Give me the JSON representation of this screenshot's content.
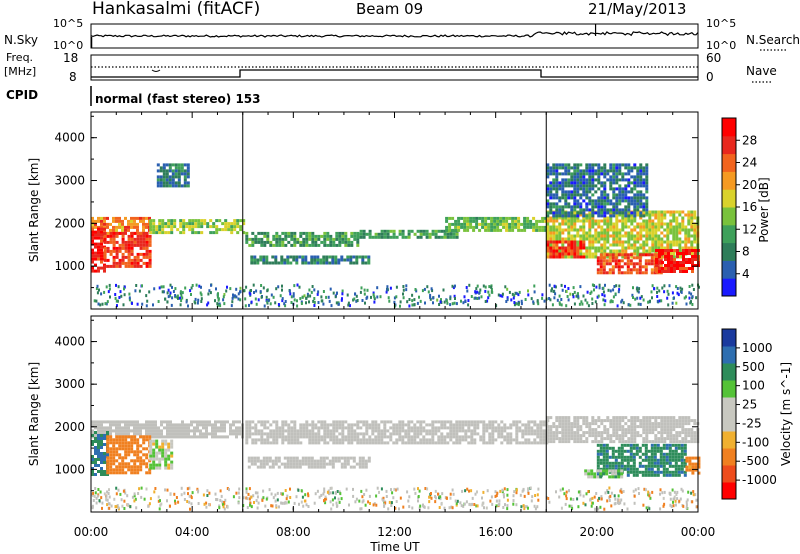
{
  "header": {
    "station": "Hankasalmi (fitACF)",
    "beam": "Beam 09",
    "date": "21/May/2013"
  },
  "noise_panel": {
    "left_label": "N.Sky",
    "right_label": "N.Search",
    "left_ticks": [
      "10^5",
      "10^0"
    ],
    "right_ticks": [
      "10^5",
      "10^0"
    ]
  },
  "freq_panel": {
    "left_label_top": "Freq.",
    "left_label_bottom": "[MHz]",
    "right_label": "Nave",
    "left_ticks": [
      "18",
      "8"
    ],
    "right_ticks": [
      "60",
      "0"
    ]
  },
  "cpid": {
    "label": "CPID",
    "text": "normal (fast stereo) 153"
  },
  "colors": {
    "power_scale": [
      "#1a1aff",
      "#2a5fb0",
      "#2e7d59",
      "#3ea05a",
      "#79c23c",
      "#d9d22c",
      "#f59a22",
      "#f2641e",
      "#e8281e",
      "#ff0000"
    ],
    "velocity_scale": [
      "#1a3a9e",
      "#2e6eb0",
      "#2e8c5a",
      "#54c237",
      "#c8c8c0",
      "#c8c8c0",
      "#f0b030",
      "#f08020",
      "#ee4c1c",
      "#ff0000"
    ],
    "ground_scatter": "#c0c0bc"
  },
  "chart_data": [
    {
      "type": "heatmap",
      "name_of_panel": "power",
      "ylabel": "Slant Range [km]",
      "ylim": [
        0,
        4600
      ],
      "yticks": [
        "1000",
        "2000",
        "3000",
        "4000"
      ],
      "xlim_hours": [
        0,
        24
      ],
      "xticks": [
        "00:00",
        "04:00",
        "08:00",
        "12:00",
        "16:00",
        "20:00",
        "00:00"
      ],
      "colorbar": {
        "label": "Power [dB]",
        "ticks": [
          "28",
          "24",
          "20",
          "16",
          "12",
          "8",
          "4"
        ],
        "range": [
          0,
          30
        ]
      },
      "scatter_regions": [
        {
          "t0": 0.0,
          "t1": 2.3,
          "r0": 1750,
          "r1": 2150,
          "level": 22
        },
        {
          "t0": 0.0,
          "t1": 0.5,
          "r0": 850,
          "r1": 1900,
          "level": 28
        },
        {
          "t0": 0.5,
          "t1": 2.3,
          "r0": 1000,
          "r1": 1800,
          "level": 26
        },
        {
          "t0": 2.3,
          "t1": 6.0,
          "r0": 1750,
          "r1": 2100,
          "level": 14
        },
        {
          "t0": 2.6,
          "t1": 3.8,
          "r0": 2900,
          "r1": 3400,
          "level": 6
        },
        {
          "t0": 6.1,
          "t1": 10.5,
          "r0": 1500,
          "r1": 1800,
          "level": 9
        },
        {
          "t0": 6.3,
          "t1": 11.0,
          "r0": 1050,
          "r1": 1250,
          "level": 7
        },
        {
          "t0": 10.5,
          "t1": 14.5,
          "r0": 1650,
          "r1": 1850,
          "level": 9
        },
        {
          "t0": 14.0,
          "t1": 18.0,
          "r0": 1800,
          "r1": 2150,
          "level": 12
        },
        {
          "t0": 18.0,
          "t1": 24.0,
          "r0": 1200,
          "r1": 2300,
          "level": 16
        },
        {
          "t0": 18.0,
          "t1": 19.5,
          "r0": 1200,
          "r1": 1600,
          "level": 27
        },
        {
          "t0": 20.0,
          "t1": 22.5,
          "r0": 850,
          "r1": 1300,
          "level": 25
        },
        {
          "t0": 22.3,
          "t1": 24.0,
          "r0": 900,
          "r1": 1400,
          "level": 28
        },
        {
          "t0": 18.0,
          "t1": 22.0,
          "r0": 2200,
          "r1": 3400,
          "level": 5
        }
      ]
    },
    {
      "type": "heatmap",
      "name_of_panel": "velocity",
      "ylabel": "Slant Range [km]",
      "ylim": [
        0,
        4600
      ],
      "yticks": [
        "1000",
        "2000",
        "3000",
        "4000"
      ],
      "xlim_hours": [
        0,
        24
      ],
      "xticks": [
        "00:00",
        "04:00",
        "08:00",
        "12:00",
        "16:00",
        "20:00",
        "00:00"
      ],
      "xlabel": "Time UT",
      "colorbar": {
        "label": "Velocity [m s^-1]",
        "ticks": [
          "1000",
          "500",
          "100",
          "25",
          "-25",
          "-100",
          "-500",
          "-1000"
        ]
      },
      "scatter_regions": [
        {
          "t0": 0.0,
          "t1": 6.0,
          "r0": 1750,
          "r1": 2150,
          "level": "ground"
        },
        {
          "t0": 0.0,
          "t1": 0.6,
          "r0": 900,
          "r1": 1900,
          "level": 500
        },
        {
          "t0": 0.6,
          "t1": 2.3,
          "r0": 950,
          "r1": 1800,
          "level": -300
        },
        {
          "t0": 2.3,
          "t1": 3.2,
          "r0": 1050,
          "r1": 1700,
          "level": 100
        },
        {
          "t0": 6.1,
          "t1": 18.0,
          "r0": 1600,
          "r1": 2150,
          "level": "ground"
        },
        {
          "t0": 6.2,
          "t1": 11.0,
          "r0": 1050,
          "r1": 1300,
          "level": "ground"
        },
        {
          "t0": 18.0,
          "t1": 24.0,
          "r0": 1650,
          "r1": 2250,
          "level": "ground"
        },
        {
          "t0": 20.0,
          "t1": 23.5,
          "r0": 850,
          "r1": 1600,
          "level": 400
        },
        {
          "t0": 19.5,
          "t1": 21.0,
          "r0": 800,
          "r1": 1000,
          "level": 150
        },
        {
          "t0": 23.5,
          "t1": 24.0,
          "r0": 900,
          "r1": 1300,
          "level": -200
        }
      ]
    }
  ]
}
